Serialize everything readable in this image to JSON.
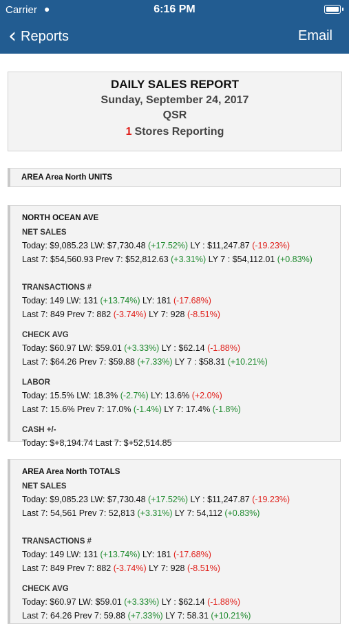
{
  "status_bar": {
    "carrier": "Carrier",
    "time": "6:16 PM"
  },
  "nav": {
    "back_label": "Reports",
    "email_label": "Email"
  },
  "report_header": {
    "title": "DAILY SALES REPORT",
    "date": "Sunday, September 24, 2017",
    "brand": "QSR",
    "stores_count": "1",
    "stores_label": "Stores Reporting"
  },
  "area_units_label": "AREA Area North UNITS",
  "store_card": {
    "title": "NORTH OCEAN AVE",
    "net_sales": {
      "label": "NET SALES",
      "l1": {
        "a": "Today: $9,085.23 LW: $7,730.48 ",
        "b": "(+17.52%)",
        "c": " LY : $11,247.87 ",
        "d": "(-19.23%)"
      },
      "l2": {
        "a": "Last 7: $54,560.93 Prev 7: $52,812.63 ",
        "b": "(+3.31%)",
        "c": " LY 7 : $54,112.01 ",
        "d": "(+0.83%)"
      }
    },
    "transactions": {
      "label": "TRANSACTIONS #",
      "l1": {
        "a": "Today: 149 LW: 131 ",
        "b": "(+13.74%)",
        "c": " LY: 181 ",
        "d": "(-17.68%)"
      },
      "l2": {
        "a": "Last 7: 849 Prev 7: 882 ",
        "b": "(-3.74%)",
        "c": " LY 7: 928 ",
        "d": "(-8.51%)"
      }
    },
    "check_avg": {
      "label": "CHECK AVG",
      "l1": {
        "a": "Today: $60.97 LW: $59.01 ",
        "b": "(+3.33%)",
        "c": " LY : $62.14 ",
        "d": "(-1.88%)"
      },
      "l2": {
        "a": "Last 7: $64.26 Prev 7: $59.88 ",
        "b": "(+7.33%)",
        "c": " LY 7 : $58.31 ",
        "d": "(+10.21%)"
      }
    },
    "labor": {
      "label": "LABOR",
      "l1": {
        "a": "Today: 15.5% LW: 18.3% ",
        "b": "(-2.7%)",
        "c": " LY: 13.6% ",
        "d": "(+2.0%)"
      },
      "l2": {
        "a": "Last 7: 15.6% Prev 7: 17.0% ",
        "b": "(-1.4%)",
        "c": " LY 7: 17.4% ",
        "d": "(-1.8%)"
      }
    },
    "cash": {
      "label": "CASH +/-",
      "l1": "Today: $+8,194.74 Last 7: $+52,514.85"
    }
  },
  "totals_card": {
    "title": "AREA Area North TOTALS",
    "net_sales": {
      "label": "NET SALES",
      "l1": {
        "a": "Today: $9,085.23 LW: $7,730.48 ",
        "b": "(+17.52%)",
        "c": " LY : $11,247.87 ",
        "d": "(-19.23%)"
      },
      "l2": {
        "a": "Last 7: 54,561 Prev 7: 52,813 ",
        "b": "(+3.31%)",
        "c": " LY 7: 54,112 ",
        "d": "(+0.83%)"
      }
    },
    "transactions": {
      "label": "TRANSACTIONS #",
      "l1": {
        "a": "Today: 149 LW: 131 ",
        "b": "(+13.74%)",
        "c": " LY: 181 ",
        "d": "(-17.68%)"
      },
      "l2": {
        "a": "Last 7: 849 Prev 7: 882 ",
        "b": "(-3.74%)",
        "c": " LY 7: 928 ",
        "d": "(-8.51%)"
      }
    },
    "check_avg": {
      "label": "CHECK AVG",
      "l1": {
        "a": "Today: $60.97 LW: $59.01 ",
        "b": "(+3.33%)",
        "c": " LY : $62.14 ",
        "d": "(-1.88%)"
      },
      "l2": {
        "a": "Last 7: 64.26 Prev 7: 59.88 ",
        "b": "(+7.33%)",
        "c": " LY 7: 58.31 ",
        "d": "(+10.21%)"
      }
    }
  },
  "colors": {
    "nav_bg": "#225c91",
    "positive": "#1e8a2e",
    "negative": "#e0201b"
  }
}
